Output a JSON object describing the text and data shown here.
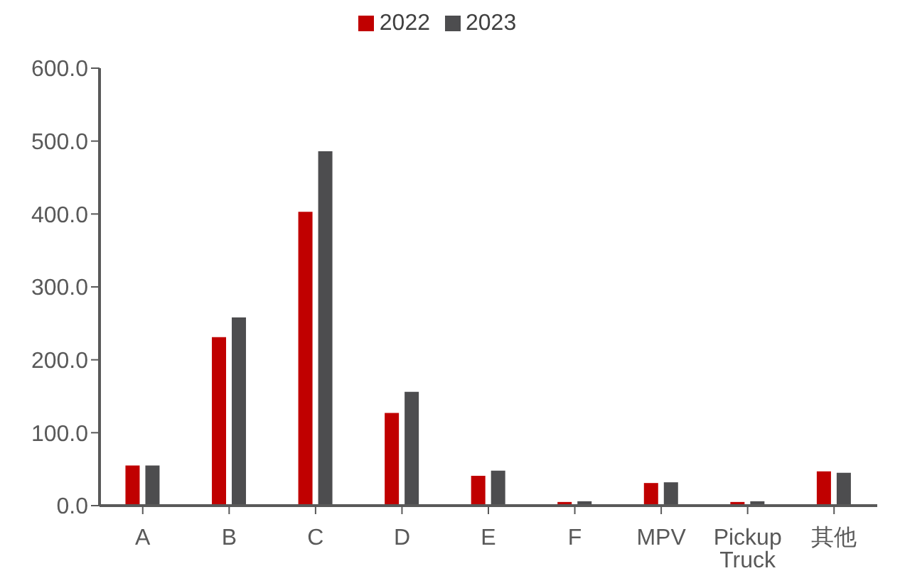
{
  "chart_data": {
    "type": "bar",
    "categories": [
      "A",
      "B",
      "C",
      "D",
      "E",
      "F",
      "MPV",
      "Pickup Truck",
      "其他"
    ],
    "series": [
      {
        "name": "2022",
        "color": "#c00000",
        "values": [
          55,
          231,
          403,
          127,
          41,
          5,
          31,
          5,
          47
        ]
      },
      {
        "name": "2023",
        "color": "#4d4d4f",
        "values": [
          55,
          258,
          486,
          156,
          48,
          6,
          32,
          6,
          45
        ]
      }
    ],
    "ylim": [
      0,
      600
    ],
    "yticks": [
      {
        "value": 0,
        "label": "0.0"
      },
      {
        "value": 100,
        "label": "100.0"
      },
      {
        "value": 200,
        "label": "200.0"
      },
      {
        "value": 300,
        "label": "300.0"
      },
      {
        "value": 400,
        "label": "400.0"
      },
      {
        "value": 500,
        "label": "500.0"
      },
      {
        "value": 600,
        "label": "600.0"
      }
    ],
    "grid": false,
    "legend": "top"
  }
}
